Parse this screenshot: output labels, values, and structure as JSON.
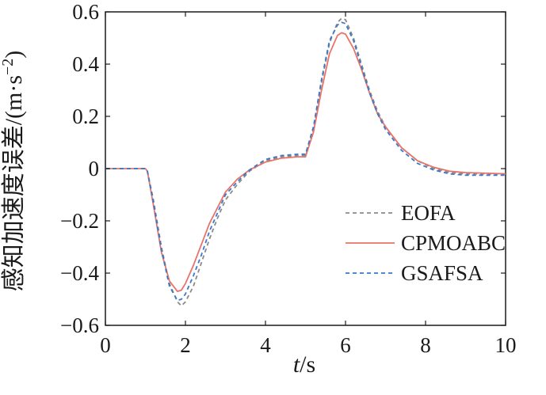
{
  "chart_data": {
    "type": "line",
    "xlabel_italic": "t",
    "xlabel_unit": "/s",
    "ylabel": "感知加速度误差/(m·s",
    "ylabel_sup": "−2",
    "ylabel_close": ")",
    "xlim": [
      0,
      10
    ],
    "ylim": [
      -0.6,
      0.6
    ],
    "x_ticks": [
      0,
      2,
      4,
      6,
      8,
      10
    ],
    "x_tick_labels": [
      "0",
      "2",
      "4",
      "6",
      "8",
      "10"
    ],
    "y_ticks": [
      -0.6,
      -0.4,
      -0.2,
      0,
      0.2,
      0.4,
      0.6
    ],
    "y_tick_labels": [
      "−0.6",
      "−0.4",
      "−0.2",
      "0",
      "0.2",
      "0.4",
      "0.6"
    ],
    "grid": false,
    "legend_position": "bottom-right",
    "series": [
      {
        "name": "EOFA",
        "color": "#8a8a8a",
        "dash": "dashed",
        "x": [
          0,
          1,
          1.05,
          1.2,
          1.4,
          1.6,
          1.8,
          1.9,
          2.0,
          2.2,
          2.4,
          2.6,
          2.8,
          3.0,
          3.3,
          3.6,
          4.0,
          4.4,
          4.8,
          5.0,
          5.2,
          5.4,
          5.6,
          5.8,
          5.9,
          6.0,
          6.2,
          6.4,
          6.6,
          6.8,
          7.0,
          7.4,
          7.8,
          8.2,
          8.6,
          9.0,
          10
        ],
        "y": [
          0,
          0,
          -0.01,
          -0.12,
          -0.3,
          -0.44,
          -0.51,
          -0.525,
          -0.51,
          -0.45,
          -0.36,
          -0.27,
          -0.19,
          -0.12,
          -0.06,
          -0.01,
          0.03,
          0.045,
          0.05,
          0.05,
          0.15,
          0.33,
          0.48,
          0.56,
          0.575,
          0.57,
          0.5,
          0.4,
          0.3,
          0.22,
          0.16,
          0.08,
          0.03,
          0.0,
          -0.015,
          -0.02,
          -0.02
        ]
      },
      {
        "name": "CPMOABC",
        "color": "#e8736a",
        "dash": "solid",
        "x": [
          0,
          1,
          1.05,
          1.2,
          1.4,
          1.6,
          1.8,
          1.9,
          2.0,
          2.2,
          2.4,
          2.6,
          2.8,
          3.0,
          3.3,
          3.6,
          4.0,
          4.4,
          4.8,
          5.0,
          5.2,
          5.4,
          5.6,
          5.8,
          5.9,
          6.0,
          6.2,
          6.4,
          6.6,
          6.8,
          7.0,
          7.4,
          7.8,
          8.2,
          8.6,
          9.0,
          10
        ],
        "y": [
          0,
          0,
          -0.01,
          -0.14,
          -0.32,
          -0.43,
          -0.47,
          -0.465,
          -0.44,
          -0.37,
          -0.29,
          -0.21,
          -0.15,
          -0.09,
          -0.04,
          -0.005,
          0.025,
          0.04,
          0.045,
          0.045,
          0.14,
          0.3,
          0.44,
          0.51,
          0.52,
          0.515,
          0.46,
          0.38,
          0.29,
          0.21,
          0.16,
          0.08,
          0.03,
          0.005,
          -0.01,
          -0.015,
          -0.02
        ]
      },
      {
        "name": "GSAFSA",
        "color": "#3a78c9",
        "dash": "dashed",
        "x": [
          0,
          1,
          1.05,
          1.2,
          1.4,
          1.6,
          1.8,
          1.9,
          2.0,
          2.2,
          2.4,
          2.6,
          2.8,
          3.0,
          3.3,
          3.6,
          4.0,
          4.4,
          4.8,
          5.0,
          5.2,
          5.4,
          5.6,
          5.8,
          5.9,
          6.0,
          6.2,
          6.4,
          6.6,
          6.8,
          7.0,
          7.4,
          7.8,
          8.2,
          8.6,
          9.0,
          10
        ],
        "y": [
          0,
          0,
          -0.01,
          -0.13,
          -0.31,
          -0.45,
          -0.505,
          -0.5,
          -0.48,
          -0.41,
          -0.33,
          -0.24,
          -0.17,
          -0.1,
          -0.05,
          -0.005,
          0.035,
          0.05,
          0.055,
          0.055,
          0.16,
          0.34,
          0.49,
          0.55,
          0.56,
          0.555,
          0.49,
          0.39,
          0.29,
          0.21,
          0.15,
          0.07,
          0.02,
          -0.005,
          -0.02,
          -0.025,
          -0.025
        ]
      }
    ]
  }
}
